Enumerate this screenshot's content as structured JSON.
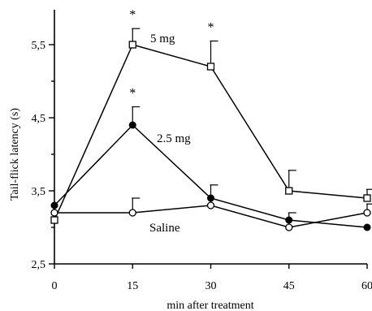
{
  "chart_data": {
    "type": "line",
    "xlabel": "min after treatment",
    "ylabel": "Tail-flick latency (s)",
    "x": [
      0,
      15,
      30,
      45,
      60
    ],
    "x_ticks": [
      "0",
      "15",
      "30",
      "45",
      "60"
    ],
    "y_ticks": [
      "2,5",
      "3,5",
      "4,5",
      "5,5"
    ],
    "xlim": [
      0,
      60
    ],
    "ylim": [
      2.5,
      6.0
    ],
    "grid": false,
    "legend": "none",
    "series": [
      {
        "name": "5 mg",
        "marker": "open-square",
        "values": [
          3.1,
          5.5,
          5.2,
          3.5,
          3.4
        ],
        "errors": [
          0.0,
          0.22,
          0.35,
          0.28,
          0.12
        ],
        "significant": [
          false,
          true,
          true,
          false,
          false
        ]
      },
      {
        "name": "2.5 mg",
        "marker": "filled-circle",
        "values": [
          3.3,
          4.4,
          3.4,
          3.1,
          3.0
        ],
        "errors": [
          0.0,
          0.25,
          0.18,
          0.1,
          0.0
        ],
        "significant": [
          false,
          true,
          false,
          false,
          false
        ]
      },
      {
        "name": "Saline",
        "marker": "open-circle",
        "values": [
          3.2,
          3.2,
          3.3,
          3.0,
          3.2
        ],
        "errors": [
          0.0,
          0.2,
          0.0,
          0.0,
          0.12
        ],
        "significant": [
          false,
          false,
          false,
          false,
          false
        ]
      }
    ],
    "significance_mark": "*"
  }
}
